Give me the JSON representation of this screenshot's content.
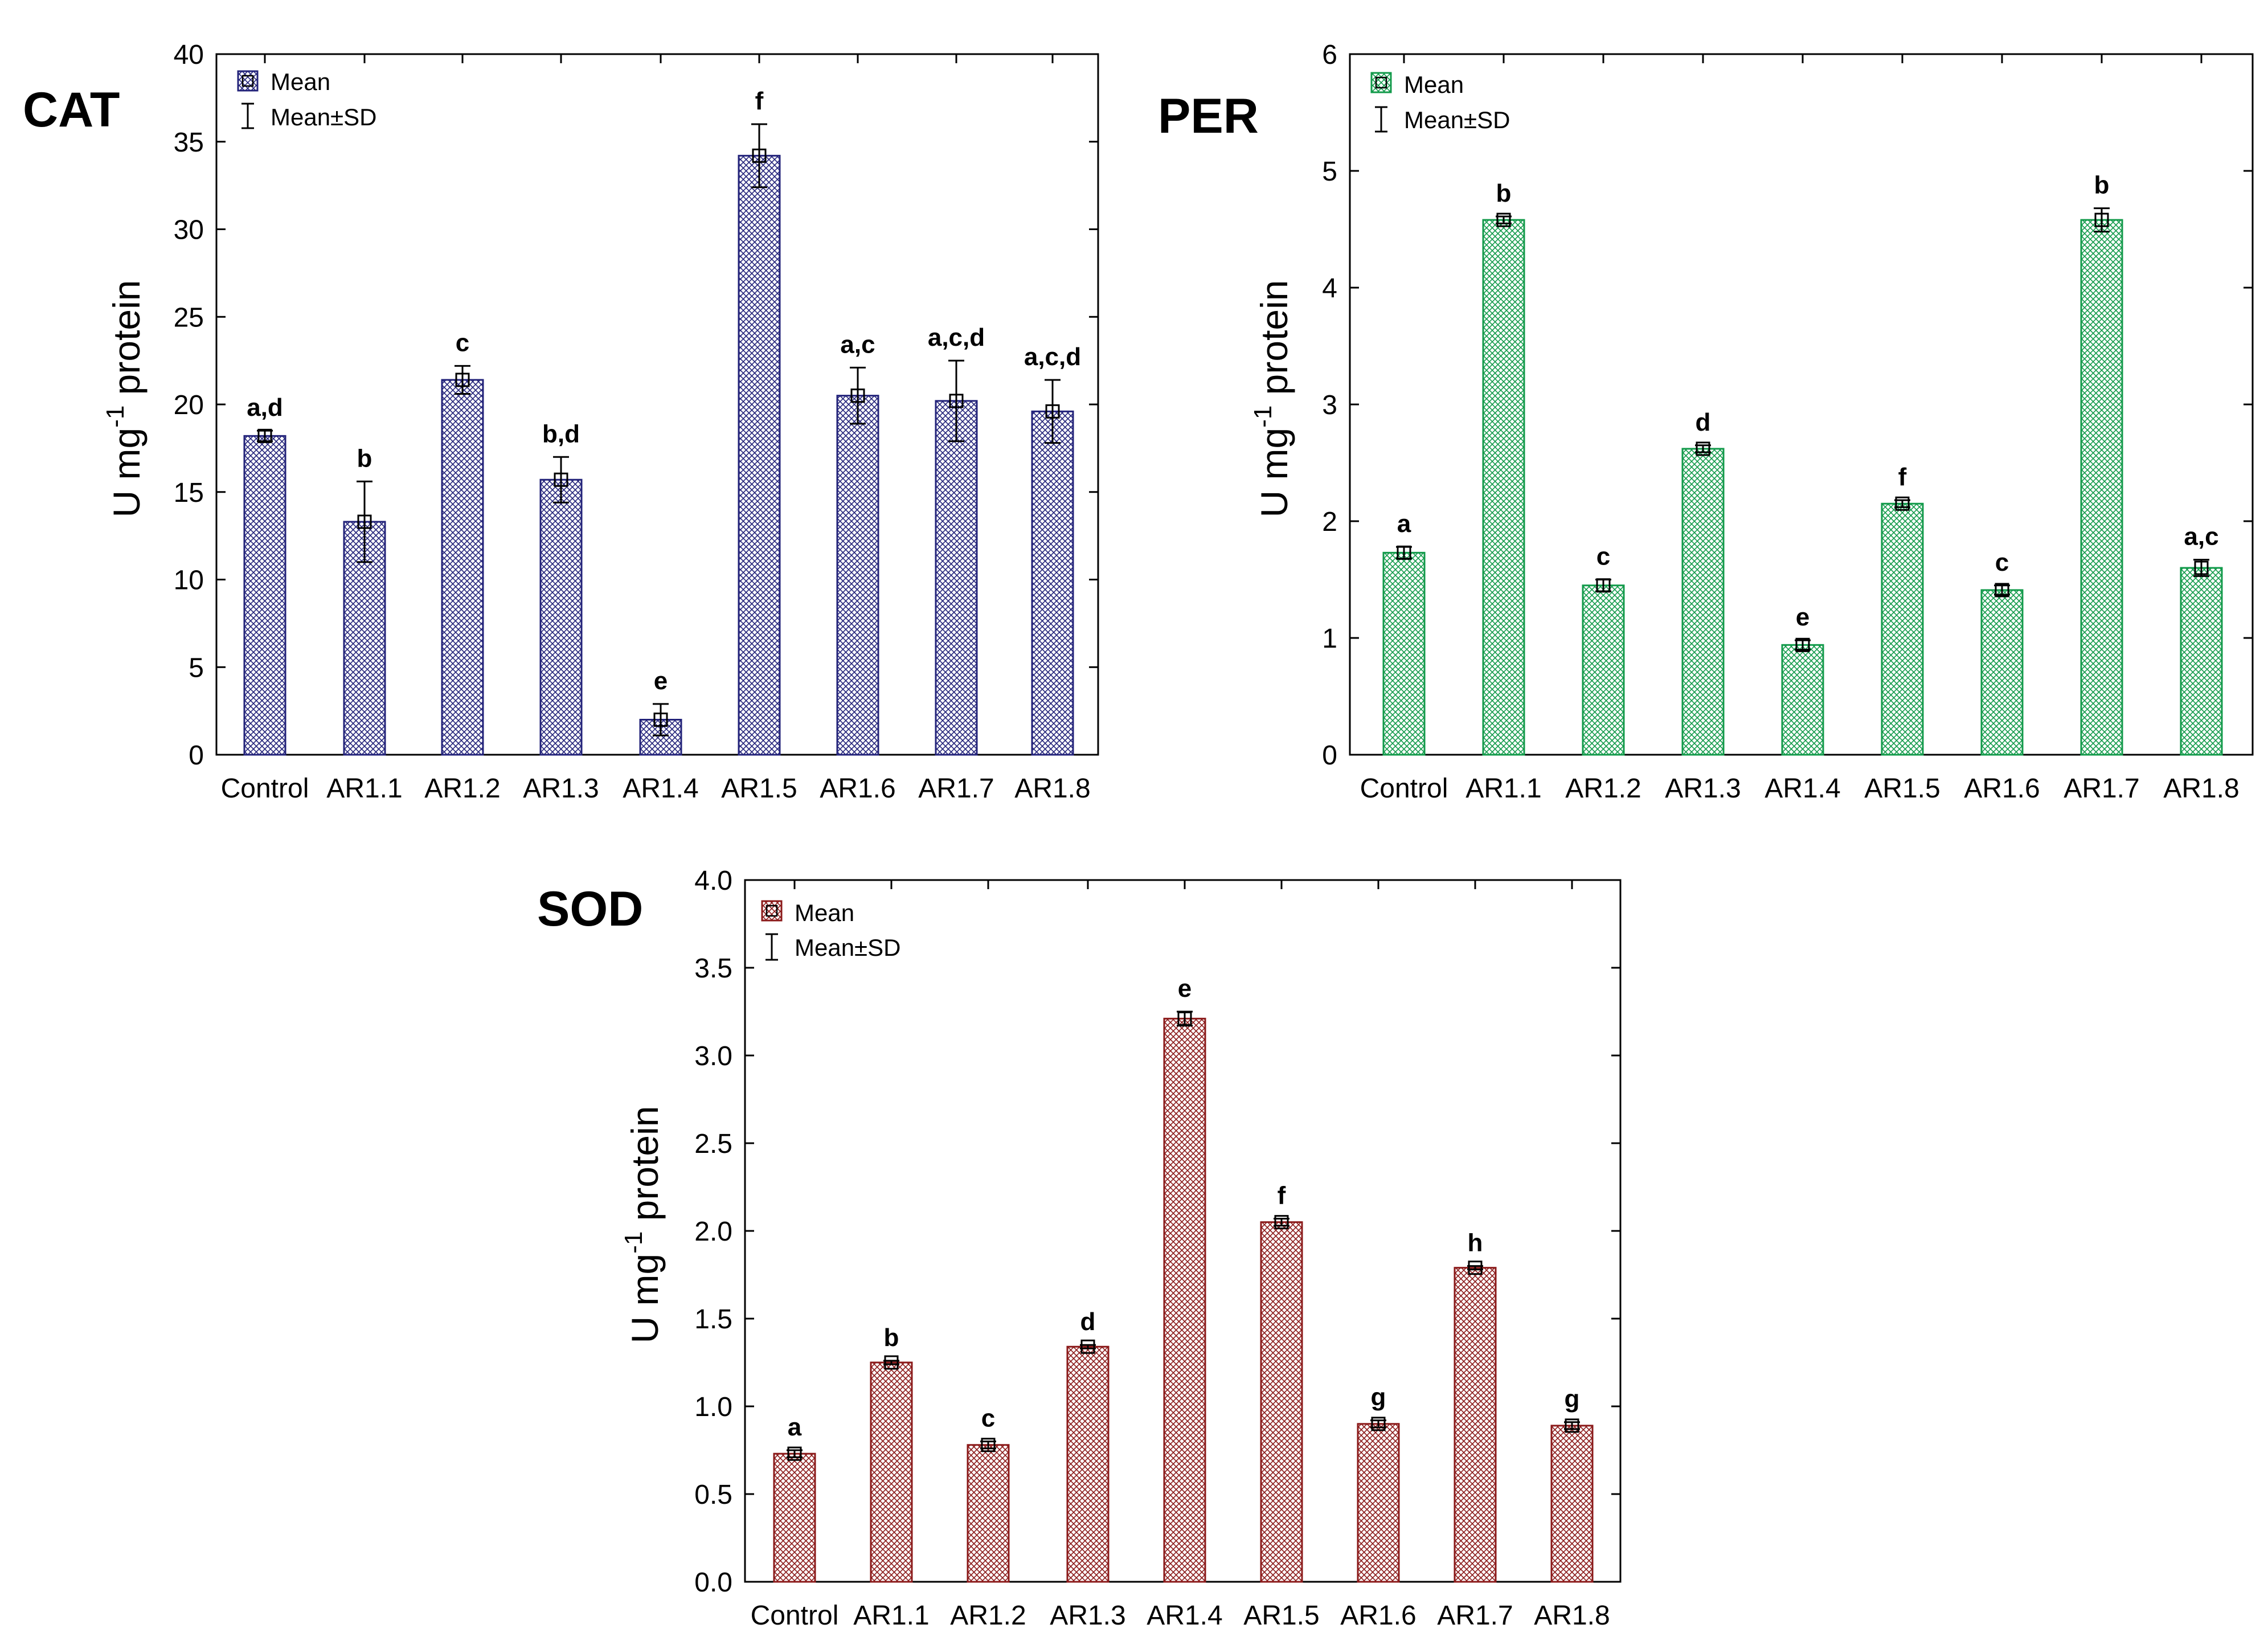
{
  "chart_data": [
    {
      "type": "bar",
      "title": "CAT",
      "ylabel": "U mg-1 protein",
      "ylim": [
        0,
        40
      ],
      "yticks": [
        0,
        5,
        10,
        15,
        20,
        25,
        30,
        35,
        40
      ],
      "categories": [
        "Control",
        "AR1.1",
        "AR1.2",
        "AR1.3",
        "AR1.4",
        "AR1.5",
        "AR1.6",
        "AR1.7",
        "AR1.8"
      ],
      "values": [
        18.2,
        13.3,
        21.4,
        15.7,
        2.0,
        34.2,
        20.5,
        20.2,
        19.6
      ],
      "sd": [
        0.3,
        2.3,
        0.8,
        1.3,
        0.9,
        1.8,
        1.6,
        2.3,
        1.8
      ],
      "significance": [
        "a,d",
        "b",
        "c",
        "b,d",
        "e",
        "f",
        "a,c",
        "a,c,d",
        "a,c,d"
      ],
      "legend": {
        "position": "top-left",
        "mean_label": "Mean",
        "sd_label": "Mean±SD"
      },
      "color": "#23237a"
    },
    {
      "type": "bar",
      "title": "PER",
      "ylabel": "U mg-1 protein",
      "ylim": [
        0,
        6
      ],
      "yticks": [
        0,
        1,
        2,
        3,
        4,
        5,
        6
      ],
      "categories": [
        "Control",
        "AR1.1",
        "AR1.2",
        "AR1.3",
        "AR1.4",
        "AR1.5",
        "AR1.6",
        "AR1.7",
        "AR1.8"
      ],
      "values": [
        1.73,
        4.58,
        1.45,
        2.62,
        0.94,
        2.15,
        1.41,
        4.58,
        1.6
      ],
      "sd": [
        0.05,
        0.03,
        0.05,
        0.03,
        0.04,
        0.03,
        0.04,
        0.1,
        0.07
      ],
      "significance": [
        "a",
        "b",
        "c",
        "d",
        "e",
        "f",
        "c",
        "b",
        "a,c"
      ],
      "legend": {
        "position": "top-left",
        "mean_label": "Mean",
        "sd_label": "Mean±SD"
      },
      "color": "#129a4a"
    },
    {
      "type": "bar",
      "title": "SOD",
      "ylabel": "U mg-1 protein",
      "ylim": [
        0,
        4
      ],
      "yticks": [
        "0.0",
        "0.5",
        "1.0",
        "1.5",
        "2.0",
        "2.5",
        "3.0",
        "3.5",
        "4.0"
      ],
      "categories": [
        "Control",
        "AR1.1",
        "AR1.2",
        "AR1.3",
        "AR1.4",
        "AR1.5",
        "AR1.6",
        "AR1.7",
        "AR1.8"
      ],
      "values": [
        0.73,
        1.25,
        0.78,
        1.34,
        3.21,
        2.05,
        0.9,
        1.79,
        0.89
      ],
      "sd": [
        0.02,
        0.01,
        0.02,
        0.01,
        0.04,
        0.02,
        0.02,
        0.01,
        0.02
      ],
      "significance": [
        "a",
        "b",
        "c",
        "d",
        "e",
        "f",
        "g",
        "h",
        "g"
      ],
      "legend": {
        "position": "top-left",
        "mean_label": "Mean",
        "sd_label": "Mean±SD"
      },
      "color": "#8b1a1a"
    }
  ]
}
